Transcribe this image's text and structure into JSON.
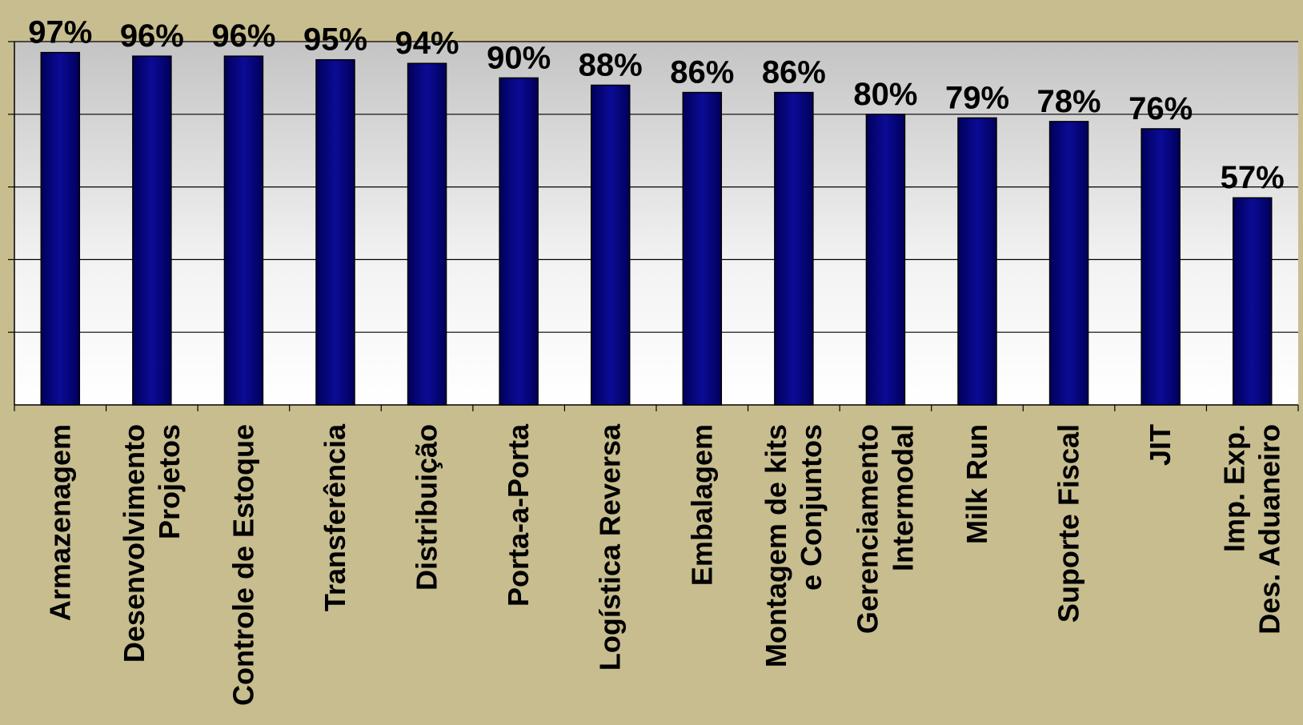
{
  "chart_data": {
    "type": "bar",
    "categories": [
      [
        "Armazenagem"
      ],
      [
        "Desenvolvimento",
        "Projetos"
      ],
      [
        "Controle de Estoque"
      ],
      [
        "Transferência"
      ],
      [
        "Distribuição"
      ],
      [
        "Porta-a-Porta"
      ],
      [
        "Logística Reversa"
      ],
      [
        "Embalagem"
      ],
      [
        "Montagem de kits",
        "e Conjuntos"
      ],
      [
        "Gerenciamento",
        "Intermodal"
      ],
      [
        "Milk Run"
      ],
      [
        "Suporte Fiscal"
      ],
      [
        "JIT"
      ],
      [
        "Imp. Exp.",
        "Des. Aduaneiro"
      ]
    ],
    "values": [
      97,
      96,
      96,
      95,
      94,
      90,
      88,
      86,
      86,
      80,
      79,
      78,
      76,
      57
    ],
    "data_labels": [
      "97%",
      "96%",
      "96%",
      "95%",
      "94%",
      "90%",
      "88%",
      "86%",
      "86%",
      "80%",
      "79%",
      "78%",
      "76%",
      "57%"
    ],
    "ylim": [
      0,
      100
    ],
    "gridlines": [
      20,
      40,
      60,
      80,
      100
    ],
    "grid": true,
    "legend": "none",
    "colors": {
      "background": "#c8bd8e",
      "bar": "#0a0a8a",
      "bar_dark": "#00005a",
      "gridline": "#000000",
      "plot_top": "#c8c8c8",
      "plot_bottom": "#ffffff"
    }
  }
}
